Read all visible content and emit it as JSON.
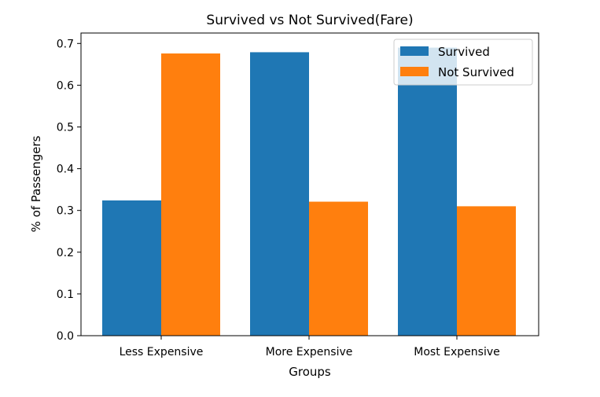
{
  "chart_data": {
    "type": "bar",
    "title": "Survived vs Not Survived(Fare)",
    "xlabel": "Groups",
    "ylabel": "% of Passengers",
    "categories": [
      "Less Expensive",
      "More Expensive",
      "Most Expensive"
    ],
    "series": [
      {
        "name": "Survived",
        "color": "#1f77b4",
        "values": [
          0.324,
          0.679,
          0.69
        ]
      },
      {
        "name": "Not Survived",
        "color": "#ff7f0e",
        "values": [
          0.676,
          0.321,
          0.31
        ]
      }
    ],
    "ylim": [
      0,
      0.725
    ],
    "yticks": [
      "0.0",
      "0.1",
      "0.2",
      "0.3",
      "0.4",
      "0.5",
      "0.6",
      "0.7"
    ],
    "legend": "top-right",
    "grid": false
  }
}
